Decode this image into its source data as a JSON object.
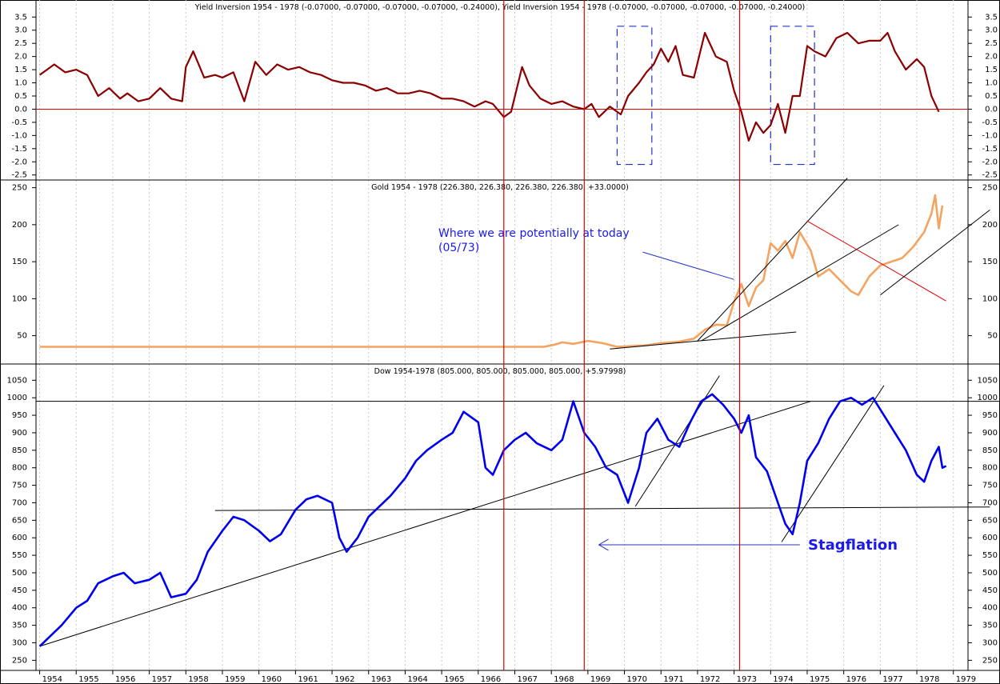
{
  "years": [
    "1954",
    "1955",
    "1956",
    "1957",
    "1958",
    "1959",
    "1960",
    "1961",
    "1962",
    "1963",
    "1964",
    "1965",
    "1966",
    "1967",
    "1968",
    "1969",
    "1970",
    "1971",
    "1972",
    "1973",
    "1974",
    "1975",
    "1976",
    "1977",
    "1978",
    "1979"
  ],
  "chart_data": [
    {
      "type": "line",
      "title": "Yield Inversion 1954 - 1978 (-0.07000, -0.07000, -0.07000, -0.07000, -0.24000), Yield Inversion 1954 - 1978 (-0.07000, -0.07000, -0.07000, -0.07000, -0.24000)",
      "ylim": [
        -2.6,
        3.6
      ],
      "yticks": [
        "3.5",
        "3.0",
        "2.5",
        "2.0",
        "1.5",
        "1.0",
        "0.5",
        "0.0",
        "-0.5",
        "-1.0",
        "-1.5",
        "-2.0",
        "-2.5"
      ],
      "ytick_values": [
        3.5,
        3.0,
        2.5,
        2.0,
        1.5,
        1.0,
        0.5,
        0.0,
        -0.5,
        -1.0,
        -1.5,
        -2.0,
        -2.5
      ],
      "color": "#8b0000",
      "zero_line_color": "#e00000",
      "x": [
        1954.0,
        1954.2,
        1954.4,
        1954.7,
        1955.0,
        1955.3,
        1955.6,
        1955.9,
        1956.2,
        1956.4,
        1956.7,
        1957.0,
        1957.3,
        1957.6,
        1957.9,
        1958.0,
        1958.2,
        1958.5,
        1958.8,
        1959.0,
        1959.3,
        1959.6,
        1959.9,
        1960.2,
        1960.5,
        1960.8,
        1961.1,
        1961.4,
        1961.7,
        1962.0,
        1962.3,
        1962.6,
        1962.9,
        1963.2,
        1963.5,
        1963.8,
        1964.1,
        1964.4,
        1964.7,
        1965.0,
        1965.3,
        1965.6,
        1965.9,
        1966.2,
        1966.4,
        1966.7,
        1966.9,
        1967.2,
        1967.4,
        1967.7,
        1968.0,
        1968.3,
        1968.6,
        1968.9,
        1969.1,
        1969.3,
        1969.6,
        1969.9,
        1970.1,
        1970.4,
        1970.6,
        1970.8,
        1971.0,
        1971.2,
        1971.4,
        1971.6,
        1971.9,
        1972.2,
        1972.5,
        1972.8,
        1973.0,
        1973.2,
        1973.4,
        1973.6,
        1973.8,
        1974.0,
        1974.2,
        1974.4,
        1974.6,
        1974.8,
        1975.0,
        1975.2,
        1975.5,
        1975.8,
        1976.1,
        1976.4,
        1976.7,
        1977.0,
        1977.2,
        1977.4,
        1977.7,
        1978.0,
        1978.2,
        1978.4,
        1978.6
      ],
      "y": [
        1.3,
        1.5,
        1.7,
        1.4,
        1.5,
        1.3,
        0.5,
        0.8,
        0.4,
        0.6,
        0.3,
        0.4,
        0.8,
        0.4,
        0.3,
        1.6,
        2.2,
        1.2,
        1.3,
        1.2,
        1.4,
        0.3,
        1.8,
        1.3,
        1.7,
        1.5,
        1.6,
        1.4,
        1.3,
        1.1,
        1.0,
        1.0,
        0.9,
        0.7,
        0.8,
        0.6,
        0.6,
        0.7,
        0.6,
        0.4,
        0.4,
        0.3,
        0.1,
        0.3,
        0.2,
        -0.3,
        -0.1,
        1.6,
        0.9,
        0.4,
        0.2,
        0.3,
        0.1,
        0.0,
        0.2,
        -0.3,
        0.1,
        -0.2,
        0.5,
        1.0,
        1.4,
        1.7,
        2.3,
        1.8,
        2.4,
        1.3,
        1.2,
        2.9,
        2.0,
        1.8,
        0.7,
        -0.1,
        -1.2,
        -0.5,
        -0.9,
        -0.6,
        0.2,
        -0.9,
        0.5,
        0.5,
        2.4,
        2.2,
        2.0,
        2.7,
        2.9,
        2.5,
        2.6,
        2.6,
        2.9,
        2.2,
        1.5,
        1.9,
        1.6,
        0.5,
        -0.1
      ],
      "boxes": [
        {
          "x0": 1969.8,
          "x1": 1970.75,
          "y0": -2.1,
          "y1": 3.15
        },
        {
          "x0": 1974.0,
          "x1": 1975.2,
          "y0": -2.1,
          "y1": 3.15
        }
      ]
    },
    {
      "type": "line",
      "title": "Gold 1954 - 1978 (226.380, 226.380, 226.380, 226.380, +33.0000)",
      "ylim": [
        15,
        255
      ],
      "yticks": [
        "250",
        "200",
        "150",
        "100",
        "50"
      ],
      "ytick_values": [
        250,
        200,
        150,
        100,
        50
      ],
      "color": "#f4a460",
      "annotation": "Where we are potentially at today\n(05/73)",
      "x": [
        1954.0,
        1967.8,
        1968.1,
        1968.3,
        1968.6,
        1969.0,
        1969.4,
        1969.8,
        1970.2,
        1970.6,
        1971.0,
        1971.5,
        1971.9,
        1972.2,
        1972.5,
        1972.8,
        1973.0,
        1973.2,
        1973.4,
        1973.6,
        1973.8,
        1974.0,
        1974.2,
        1974.4,
        1974.6,
        1974.8,
        1975.1,
        1975.3,
        1975.6,
        1975.9,
        1976.2,
        1976.4,
        1976.7,
        1977.0,
        1977.3,
        1977.6,
        1977.9,
        1978.2,
        1978.4,
        1978.5,
        1978.6,
        1978.7
      ],
      "y": [
        35,
        35,
        38,
        41,
        39,
        43,
        40,
        35,
        36,
        37,
        40,
        42,
        46,
        58,
        65,
        64,
        96,
        120,
        90,
        115,
        125,
        175,
        165,
        178,
        155,
        190,
        165,
        130,
        140,
        125,
        110,
        105,
        130,
        145,
        150,
        155,
        170,
        190,
        215,
        240,
        195,
        226
      ],
      "trendlines": [
        {
          "x0": 1969.6,
          "y0": 32,
          "x1": 1974.7,
          "y1": 55,
          "color": "#000"
        },
        {
          "x0": 1972.0,
          "y0": 43,
          "x1": 1976.1,
          "y1": 263,
          "color": "#000"
        },
        {
          "x0": 1972.1,
          "y0": 43,
          "x1": 1977.5,
          "y1": 200,
          "color": "#000"
        },
        {
          "x0": 1975.0,
          "y0": 205,
          "x1": 1978.8,
          "y1": 97,
          "color": "#e00000"
        },
        {
          "x0": 1977.0,
          "y0": 105,
          "x1": 1980.0,
          "y1": 220,
          "color": "#000"
        }
      ],
      "pointer": {
        "x0": 1970.5,
        "y0": 163,
        "x1": 1973.0,
        "y1": 126
      }
    },
    {
      "type": "line",
      "title": "Dow 1954-1978 (805.000, 805.000, 805.000, 805.000, +5.97998)",
      "ylim": [
        228,
        1085
      ],
      "yticks": [
        "1050",
        "1000",
        "950",
        "900",
        "850",
        "800",
        "750",
        "700",
        "650",
        "600",
        "550",
        "500",
        "450",
        "400",
        "350",
        "300",
        "250"
      ],
      "ytick_values": [
        1050,
        1000,
        950,
        900,
        850,
        800,
        750,
        700,
        650,
        600,
        550,
        500,
        450,
        400,
        350,
        300,
        250
      ],
      "color": "#0000ee",
      "annotation": "Stagflation",
      "hlines": [
        990
      ],
      "x": [
        1954.0,
        1954.3,
        1954.6,
        1955.0,
        1955.3,
        1955.6,
        1956.0,
        1956.3,
        1956.6,
        1957.0,
        1957.3,
        1957.6,
        1958.0,
        1958.3,
        1958.6,
        1959.0,
        1959.3,
        1959.6,
        1960.0,
        1960.3,
        1960.6,
        1961.0,
        1961.3,
        1961.6,
        1962.0,
        1962.2,
        1962.4,
        1962.7,
        1963.0,
        1963.3,
        1963.6,
        1964.0,
        1964.3,
        1964.6,
        1965.0,
        1965.3,
        1965.6,
        1966.0,
        1966.2,
        1966.4,
        1966.7,
        1967.0,
        1967.3,
        1967.6,
        1968.0,
        1968.3,
        1968.6,
        1968.9,
        1969.2,
        1969.5,
        1969.8,
        1970.1,
        1970.4,
        1970.6,
        1970.9,
        1971.2,
        1971.5,
        1971.8,
        1972.1,
        1972.4,
        1972.7,
        1973.0,
        1973.2,
        1973.4,
        1973.6,
        1973.9,
        1974.2,
        1974.4,
        1974.6,
        1974.8,
        1975.0,
        1975.3,
        1975.6,
        1975.9,
        1976.2,
        1976.5,
        1976.8,
        1977.1,
        1977.4,
        1977.7,
        1978.0,
        1978.2,
        1978.4,
        1978.6,
        1978.7,
        1978.8
      ],
      "y": [
        290,
        320,
        350,
        400,
        420,
        470,
        490,
        500,
        470,
        480,
        500,
        430,
        440,
        480,
        560,
        620,
        660,
        650,
        620,
        590,
        610,
        680,
        710,
        720,
        700,
        600,
        560,
        600,
        660,
        690,
        720,
        770,
        820,
        850,
        880,
        900,
        960,
        930,
        800,
        780,
        850,
        880,
        900,
        870,
        850,
        880,
        990,
        900,
        860,
        800,
        780,
        700,
        800,
        900,
        940,
        880,
        860,
        930,
        990,
        1010,
        980,
        940,
        900,
        950,
        830,
        790,
        700,
        640,
        610,
        700,
        820,
        870,
        940,
        990,
        1000,
        980,
        1000,
        950,
        900,
        850,
        780,
        760,
        820,
        860,
        800,
        805
      ],
      "trendlines": [
        {
          "x0": 1954.0,
          "y0": 290,
          "x1": 1975.1,
          "y1": 990
        },
        {
          "x0": 1958.8,
          "y0": 678,
          "x1": 1980.0,
          "y1": 688
        },
        {
          "x0": 1970.3,
          "y0": 690,
          "x1": 1972.6,
          "y1": 1063
        },
        {
          "x0": 1974.3,
          "y0": 588,
          "x1": 1977.1,
          "y1": 1035
        }
      ],
      "arrow": {
        "x0": 1974.8,
        "x1": 1969.3,
        "y": 580
      }
    }
  ],
  "event_lines": [
    1966.7,
    1968.9,
    1973.15
  ]
}
